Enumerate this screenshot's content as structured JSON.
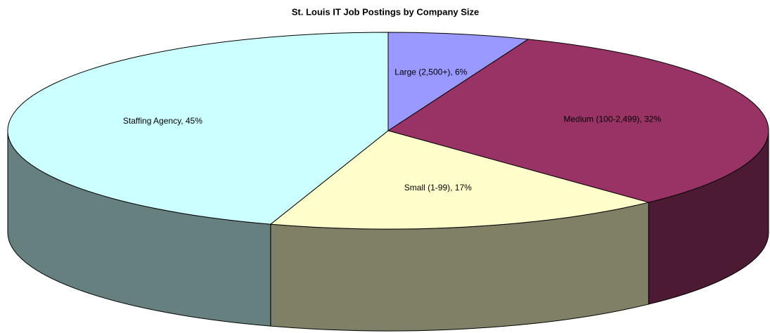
{
  "chart_data": {
    "type": "pie3d",
    "title": "St. Louis IT Job Postings by Company Size",
    "values": [
      6,
      32,
      17,
      45
    ],
    "value_labels": [
      "Large (2,500+), 6%",
      "Medium (100-2,499), 32%",
      "Small (1-99), 17%",
      "Staffing Agency, 45%"
    ],
    "colors": [
      "#9999ff",
      "#993366",
      "#ffffcc",
      "#ccffff"
    ]
  }
}
